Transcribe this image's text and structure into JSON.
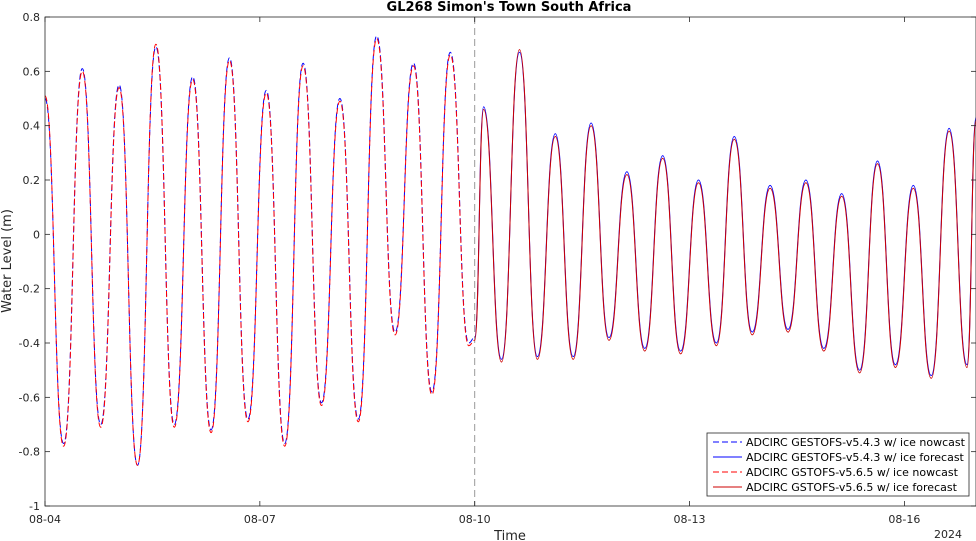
{
  "chart_data": {
    "type": "line",
    "title": "GL268 Simon's Town South Africa",
    "xlabel": "Time",
    "ylabel": "Water Level (m)",
    "year_label": "2024",
    "xlim": [
      "2024-08-04 00:00",
      "2024-08-17 00:00"
    ],
    "ylim": [
      -1,
      0.8
    ],
    "yticks": [
      -1,
      -0.8,
      -0.6,
      -0.4,
      -0.2,
      0,
      0.2,
      0.4,
      0.6,
      0.8
    ],
    "ytick_labels": [
      "-1",
      "-0.8",
      "-0.6",
      "-0.4",
      "-0.2",
      "0",
      "0.2",
      "0.4",
      "0.6",
      "0.8"
    ],
    "xticks": [
      "2024-08-04",
      "2024-08-07",
      "2024-08-10",
      "2024-08-13",
      "2024-08-16"
    ],
    "xtick_labels": [
      "08-04",
      "08-07",
      "08-10",
      "08-13",
      "08-16"
    ],
    "nowcast_forecast_boundary": "2024-08-10 00:00",
    "grid": false,
    "legend_position": "bottom-right",
    "colors": {
      "gestofs": "#0000ff",
      "gstofs": "#ff0000",
      "boundary": "#999999"
    },
    "series": [
      {
        "name": "ADCIRC GESTOFS-v5.4.3 w/ ice nowcast",
        "color": "#0000ff",
        "dash": "dashed",
        "x": [
          "2024-08-04 00:00",
          "2024-08-04 06:15",
          "2024-08-04 12:30",
          "2024-08-04 18:40",
          "2024-08-05 00:50",
          "2024-08-05 07:00",
          "2024-08-05 13:10",
          "2024-08-05 19:20",
          "2024-08-06 01:30",
          "2024-08-06 07:40",
          "2024-08-06 13:50",
          "2024-08-06 20:00",
          "2024-08-07 02:10",
          "2024-08-07 08:20",
          "2024-08-07 14:30",
          "2024-08-07 20:40",
          "2024-08-08 02:50",
          "2024-08-08 09:00",
          "2024-08-08 15:10",
          "2024-08-08 21:20",
          "2024-08-09 03:30",
          "2024-08-09 09:40",
          "2024-08-09 15:50",
          "2024-08-09 22:00",
          "2024-08-10 00:00"
        ],
        "y": [
          0.5,
          -0.77,
          0.61,
          -0.7,
          0.55,
          -0.85,
          0.69,
          -0.7,
          0.58,
          -0.72,
          0.65,
          -0.68,
          0.53,
          -0.77,
          0.63,
          -0.62,
          0.5,
          -0.68,
          0.73,
          -0.36,
          0.63,
          -0.58,
          0.67,
          -0.4,
          -0.38
        ]
      },
      {
        "name": "ADCIRC GESTOFS-v5.4.3 w/ ice forecast",
        "color": "#0000ff",
        "dash": "solid",
        "x": [
          "2024-08-10 00:00",
          "2024-08-10 03:00",
          "2024-08-10 09:00",
          "2024-08-10 15:00",
          "2024-08-10 21:00",
          "2024-08-11 03:00",
          "2024-08-11 09:00",
          "2024-08-11 15:00",
          "2024-08-11 21:00",
          "2024-08-12 03:00",
          "2024-08-12 09:00",
          "2024-08-12 15:00",
          "2024-08-12 21:00",
          "2024-08-13 03:00",
          "2024-08-13 09:00",
          "2024-08-13 15:00",
          "2024-08-13 21:00",
          "2024-08-14 03:00",
          "2024-08-14 09:00",
          "2024-08-14 15:00",
          "2024-08-14 21:00",
          "2024-08-15 03:00",
          "2024-08-15 09:00",
          "2024-08-15 15:00",
          "2024-08-15 21:00",
          "2024-08-16 03:00",
          "2024-08-16 09:00",
          "2024-08-16 15:00",
          "2024-08-16 21:00",
          "2024-08-17 00:00"
        ],
        "y": [
          -0.38,
          0.47,
          -0.46,
          0.67,
          -0.45,
          0.37,
          -0.45,
          0.41,
          -0.38,
          0.23,
          -0.42,
          0.29,
          -0.43,
          0.2,
          -0.4,
          0.36,
          -0.36,
          0.18,
          -0.35,
          0.2,
          -0.42,
          0.15,
          -0.5,
          0.27,
          -0.48,
          0.18,
          -0.52,
          0.39,
          -0.48,
          0.43
        ]
      },
      {
        "name": "ADCIRC GSTOFS-v5.6.5 w/ ice nowcast",
        "color": "#ff0000",
        "dash": "dashed",
        "x": [
          "2024-08-04 00:00",
          "2024-08-04 06:15",
          "2024-08-04 12:30",
          "2024-08-04 18:40",
          "2024-08-05 00:50",
          "2024-08-05 07:00",
          "2024-08-05 13:10",
          "2024-08-05 19:20",
          "2024-08-06 01:30",
          "2024-08-06 07:40",
          "2024-08-06 13:50",
          "2024-08-06 20:00",
          "2024-08-07 02:10",
          "2024-08-07 08:20",
          "2024-08-07 14:30",
          "2024-08-07 20:40",
          "2024-08-08 02:50",
          "2024-08-08 09:00",
          "2024-08-08 15:10",
          "2024-08-08 21:20",
          "2024-08-09 03:30",
          "2024-08-09 09:40",
          "2024-08-09 15:50",
          "2024-08-09 22:00",
          "2024-08-10 00:00"
        ],
        "y": [
          0.51,
          -0.78,
          0.6,
          -0.71,
          0.54,
          -0.85,
          0.7,
          -0.71,
          0.57,
          -0.73,
          0.64,
          -0.69,
          0.52,
          -0.78,
          0.62,
          -0.63,
          0.49,
          -0.69,
          0.72,
          -0.37,
          0.62,
          -0.59,
          0.66,
          -0.41,
          -0.39
        ]
      },
      {
        "name": "ADCIRC GSTOFS-v5.6.5 w/ ice forecast",
        "color": "#cc0000",
        "dash": "solid",
        "x": [
          "2024-08-10 00:00",
          "2024-08-10 03:00",
          "2024-08-10 09:00",
          "2024-08-10 15:00",
          "2024-08-10 21:00",
          "2024-08-11 03:00",
          "2024-08-11 09:00",
          "2024-08-11 15:00",
          "2024-08-11 21:00",
          "2024-08-12 03:00",
          "2024-08-12 09:00",
          "2024-08-12 15:00",
          "2024-08-12 21:00",
          "2024-08-13 03:00",
          "2024-08-13 09:00",
          "2024-08-13 15:00",
          "2024-08-13 21:00",
          "2024-08-14 03:00",
          "2024-08-14 09:00",
          "2024-08-14 15:00",
          "2024-08-14 21:00",
          "2024-08-15 03:00",
          "2024-08-15 09:00",
          "2024-08-15 15:00",
          "2024-08-15 21:00",
          "2024-08-16 03:00",
          "2024-08-16 09:00",
          "2024-08-16 15:00",
          "2024-08-16 21:00",
          "2024-08-17 00:00"
        ],
        "y": [
          -0.39,
          0.46,
          -0.47,
          0.68,
          -0.46,
          0.36,
          -0.46,
          0.4,
          -0.39,
          0.22,
          -0.43,
          0.28,
          -0.44,
          0.19,
          -0.41,
          0.35,
          -0.37,
          0.17,
          -0.36,
          0.19,
          -0.43,
          0.14,
          -0.51,
          0.26,
          -0.49,
          0.17,
          -0.53,
          0.38,
          -0.49,
          0.42
        ]
      }
    ]
  }
}
